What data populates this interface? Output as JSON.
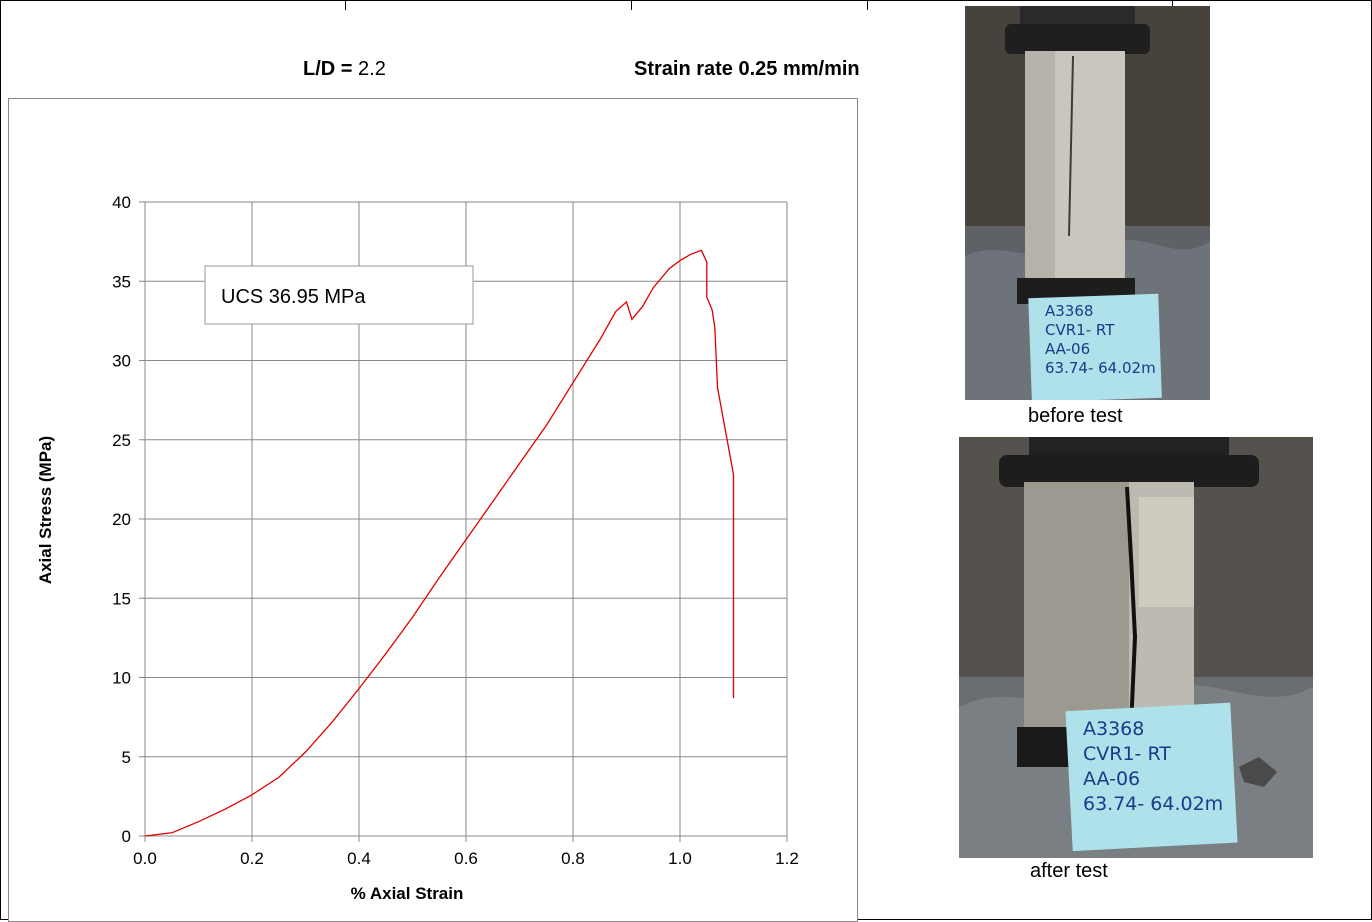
{
  "header": {
    "ld_label": "L/D =",
    "ld_value": "2.2",
    "strain_rate": "Strain rate 0.25 mm/min"
  },
  "photos": {
    "before_caption": "before test",
    "after_caption": "after test",
    "label_lines": [
      "A3368",
      "CVR1- RT",
      "AA-06",
      "63.74- 64.02m"
    ]
  },
  "chart_data": {
    "type": "line",
    "title": "",
    "xlabel": "% Axial Strain",
    "ylabel": "Axial Stress (MPa)",
    "xlim": [
      0,
      1.2
    ],
    "ylim": [
      0,
      40
    ],
    "xticks": [
      "0.0",
      "0.2",
      "0.4",
      "0.6",
      "0.8",
      "1.0",
      "1.2"
    ],
    "yticks": [
      "0",
      "5",
      "10",
      "15",
      "20",
      "25",
      "30",
      "35",
      "40"
    ],
    "grid": true,
    "annotation": "UCS 36.95 MPa",
    "series": [
      {
        "color": "#e00000",
        "x": [
          0.0,
          0.05,
          0.1,
          0.15,
          0.2,
          0.25,
          0.3,
          0.35,
          0.4,
          0.45,
          0.5,
          0.55,
          0.6,
          0.65,
          0.7,
          0.75,
          0.8,
          0.85,
          0.88,
          0.9,
          0.91,
          0.93,
          0.95,
          0.98,
          1.0,
          1.02,
          1.04,
          1.05,
          1.05,
          1.06,
          1.065,
          1.07,
          1.1,
          1.1
        ],
        "y": [
          0.0,
          0.2,
          0.9,
          1.7,
          2.6,
          3.7,
          5.3,
          7.2,
          9.3,
          11.5,
          13.8,
          16.3,
          18.7,
          21.1,
          23.5,
          25.9,
          28.6,
          31.3,
          33.1,
          33.7,
          32.6,
          33.4,
          34.6,
          35.8,
          36.3,
          36.7,
          36.95,
          36.2,
          34.0,
          33.2,
          32.1,
          28.3,
          22.8,
          8.7
        ]
      }
    ]
  }
}
